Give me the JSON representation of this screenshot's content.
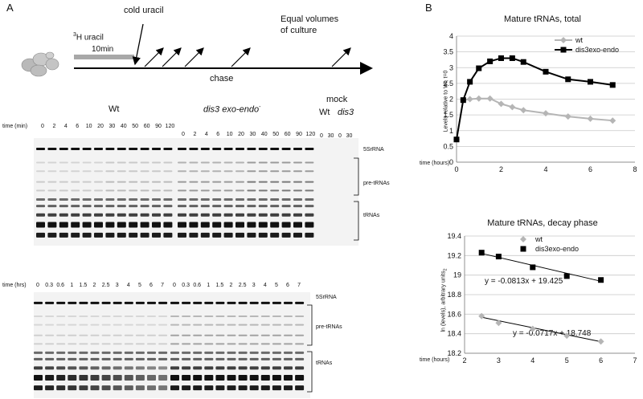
{
  "panel_a": {
    "letter": "A",
    "schematic": {
      "h3_label_sup": "3",
      "h3_label_rest": "H uracil",
      "duration": "10min",
      "cold_uracil": "cold uracil",
      "equal_volumes": "Equal volumes",
      "of_culture": "of culture",
      "chase": "chase"
    },
    "gel_top": {
      "group_wt": "Wt",
      "group_dis3": "dis3 exo-endo",
      "group_dis3_sup": "-",
      "mock": "mock",
      "mock_wt": "Wt",
      "mock_dis3": "dis3",
      "time_label": "time (min)",
      "wt_times": [
        "0",
        "2",
        "4",
        "6",
        "10",
        "20",
        "30",
        "40",
        "50",
        "60",
        "90",
        "120"
      ],
      "dis3_times": [
        "0",
        "2",
        "4",
        "6",
        "10",
        "20",
        "30",
        "40",
        "50",
        "60",
        "90",
        "120"
      ],
      "mock_times": [
        "0",
        "30",
        "0",
        "30"
      ],
      "band_5s": "5SrRNA",
      "band_pre": "pre-tRNAs",
      "band_trna": "tRNAs"
    },
    "gel_bottom": {
      "time_label": "time (hrs)",
      "wt_times": [
        "0",
        "0.3",
        "0.6",
        "1",
        "1.5",
        "2",
        "2.5",
        "3",
        "4",
        "5",
        "6",
        "7"
      ],
      "dis3_times": [
        "0",
        "0.3",
        "0.6",
        "1",
        "1.5",
        "2",
        "2.5",
        "3",
        "4",
        "5",
        "6",
        "7"
      ],
      "band_5s": "5SrRNA",
      "band_pre": "pre-tRNAs",
      "band_trna": "tRNAs"
    }
  },
  "panel_b": {
    "letter": "B",
    "colors": {
      "wt": "#b5b5b5",
      "dis3": "#000000",
      "grid": "#c8c8c8"
    },
    "chart_data": [
      {
        "type": "line",
        "title": "Mature tRNAs, total",
        "xlabel": "time (hours)",
        "ylabel": "Levels relative to Wt,  t=0",
        "xlim": [
          0,
          8
        ],
        "ylim": [
          0,
          4
        ],
        "xticks": [
          "0",
          "2",
          "4",
          "6",
          "8"
        ],
        "yticks": [
          "0",
          "0.5",
          "1",
          "1.5",
          "2",
          "2.5",
          "3",
          "3.5",
          "4"
        ],
        "grid": true,
        "legend": "top-right",
        "series": [
          {
            "name": "wt",
            "x": [
              0,
              0.3,
              0.6,
              1,
              1.5,
              2,
              2.5,
              3,
              4,
              5,
              6,
              7
            ],
            "y": [
              0.72,
              1.97,
              2.0,
              2.02,
              2.02,
              1.85,
              1.75,
              1.65,
              1.55,
              1.45,
              1.38,
              1.32
            ]
          },
          {
            "name": "dis3exo-endo",
            "x": [
              0,
              0.3,
              0.6,
              1,
              1.5,
              2,
              2.5,
              3,
              4,
              5,
              6,
              7
            ],
            "y": [
              0.72,
              1.97,
              2.55,
              2.98,
              3.2,
              3.3,
              3.3,
              3.18,
              2.87,
              2.63,
              2.55,
              2.45
            ]
          }
        ]
      },
      {
        "type": "scatter",
        "title": "Mature tRNAs, decay phase",
        "xlabel": "time (hours)",
        "ylabel": "ln (levels), arbitrary units",
        "ylabel_sub": "2",
        "xlim": [
          2,
          7
        ],
        "ylim": [
          18.2,
          19.4
        ],
        "xticks": [
          "2",
          "3",
          "4",
          "5",
          "6",
          "7"
        ],
        "yticks": [
          "18.2",
          "18.4",
          "18.6",
          "18.8",
          "19",
          "19.2",
          "19.4"
        ],
        "grid": true,
        "legend": "top-left",
        "series": [
          {
            "name": "wt",
            "x": [
              2.5,
              3,
              4,
              5,
              6
            ],
            "y": [
              18.58,
              18.51,
              18.45,
              18.38,
              18.32
            ]
          },
          {
            "name": "dis3exo-endo",
            "x": [
              2.5,
              3,
              4,
              5,
              6
            ],
            "y": [
              19.23,
              19.19,
              19.08,
              18.99,
              18.95
            ]
          }
        ],
        "trendlines": [
          {
            "series": "dis3exo-endo",
            "slope": -0.0813,
            "intercept": 19.425,
            "label": "y = -0.0813x + 19.425"
          },
          {
            "series": "wt",
            "slope": -0.0717,
            "intercept": 18.748,
            "label": "y = -0.0717x + 18.748"
          }
        ]
      }
    ]
  }
}
